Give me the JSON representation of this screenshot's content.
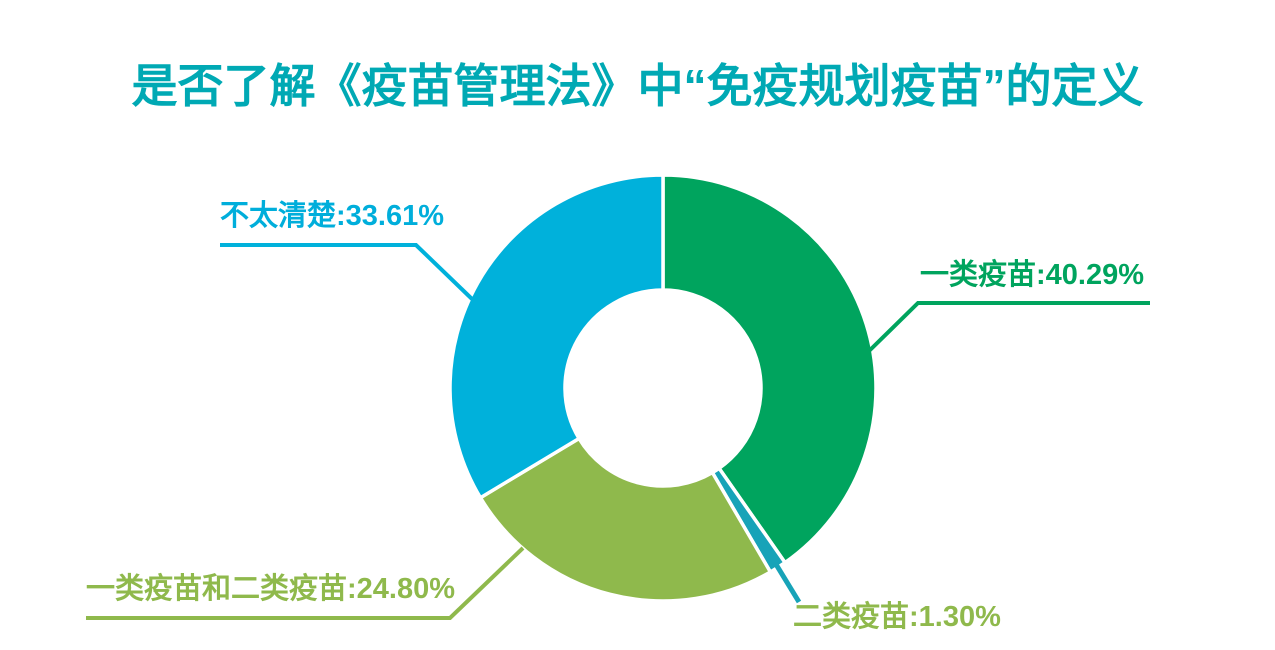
{
  "title": {
    "text": "是否了解《疫苗管理法》中“免疫规划疫苗”的定义",
    "color": "#00A9B4"
  },
  "chart_data": {
    "type": "pie",
    "subtype": "donut",
    "title": "是否了解《疫苗管理法》中“免疫规划疫苗”的定义",
    "unit": "%",
    "start_angle_deg": 0,
    "direction": "clockwise",
    "inner_radius_ratio": 0.46,
    "background_color": "#FFFFFF",
    "segments": [
      {
        "label": "一类疫苗",
        "value": 40.29,
        "display": "一类疫苗:40.29%",
        "color": "#00A45E",
        "label_color": "#00A45E",
        "label_position": "right"
      },
      {
        "label": "二类疫苗",
        "value": 1.3,
        "display": "二类疫苗:1.30%",
        "color": "#17A3B8",
        "label_color": "#8FB94C",
        "label_position": "bottom-right"
      },
      {
        "label": "一类疫苗和二类疫苗",
        "value": 24.8,
        "display": "一类疫苗和二类疫苗:24.80%",
        "color": "#8FB94C",
        "label_color": "#8FB94C",
        "label_position": "bottom-left"
      },
      {
        "label": "不太清楚",
        "value": 33.61,
        "display": "不太清楚:33.61%",
        "color": "#00B1DB",
        "label_color": "#00AEDB",
        "label_position": "top-left"
      }
    ]
  }
}
